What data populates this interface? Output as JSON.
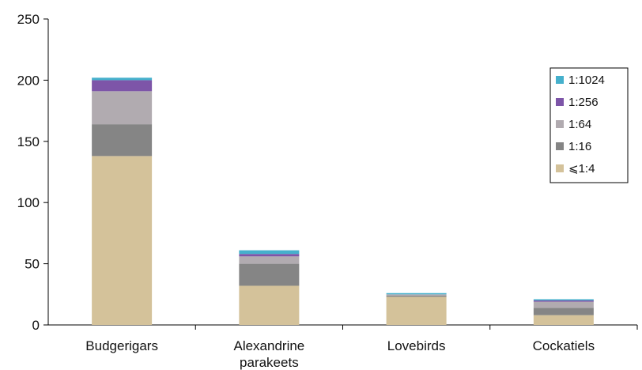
{
  "chart_data": {
    "type": "bar",
    "stacked": true,
    "categories": [
      [
        "Budgerigars"
      ],
      [
        "Alexandrine",
        "parakeets"
      ],
      [
        "Lovebirds"
      ],
      [
        "Cockatiels"
      ]
    ],
    "series": [
      {
        "name": "⩽1:4",
        "color": "#d4c29a",
        "values": [
          138,
          32,
          23,
          8
        ]
      },
      {
        "name": "1:16",
        "color": "#858585",
        "values": [
          26,
          18,
          1,
          6
        ]
      },
      {
        "name": "1:64",
        "color": "#b1abb0",
        "values": [
          27,
          6,
          1,
          5
        ]
      },
      {
        "name": "1:256",
        "color": "#7d55a8",
        "values": [
          9,
          2,
          0,
          1
        ]
      },
      {
        "name": "1:1024",
        "color": "#45b0cc",
        "values": [
          2,
          3,
          1,
          1
        ]
      }
    ],
    "y_ticks": [
      0,
      50,
      100,
      150,
      200,
      250
    ],
    "ylim": [
      0,
      250
    ],
    "legend_position": "right",
    "grid": false
  }
}
